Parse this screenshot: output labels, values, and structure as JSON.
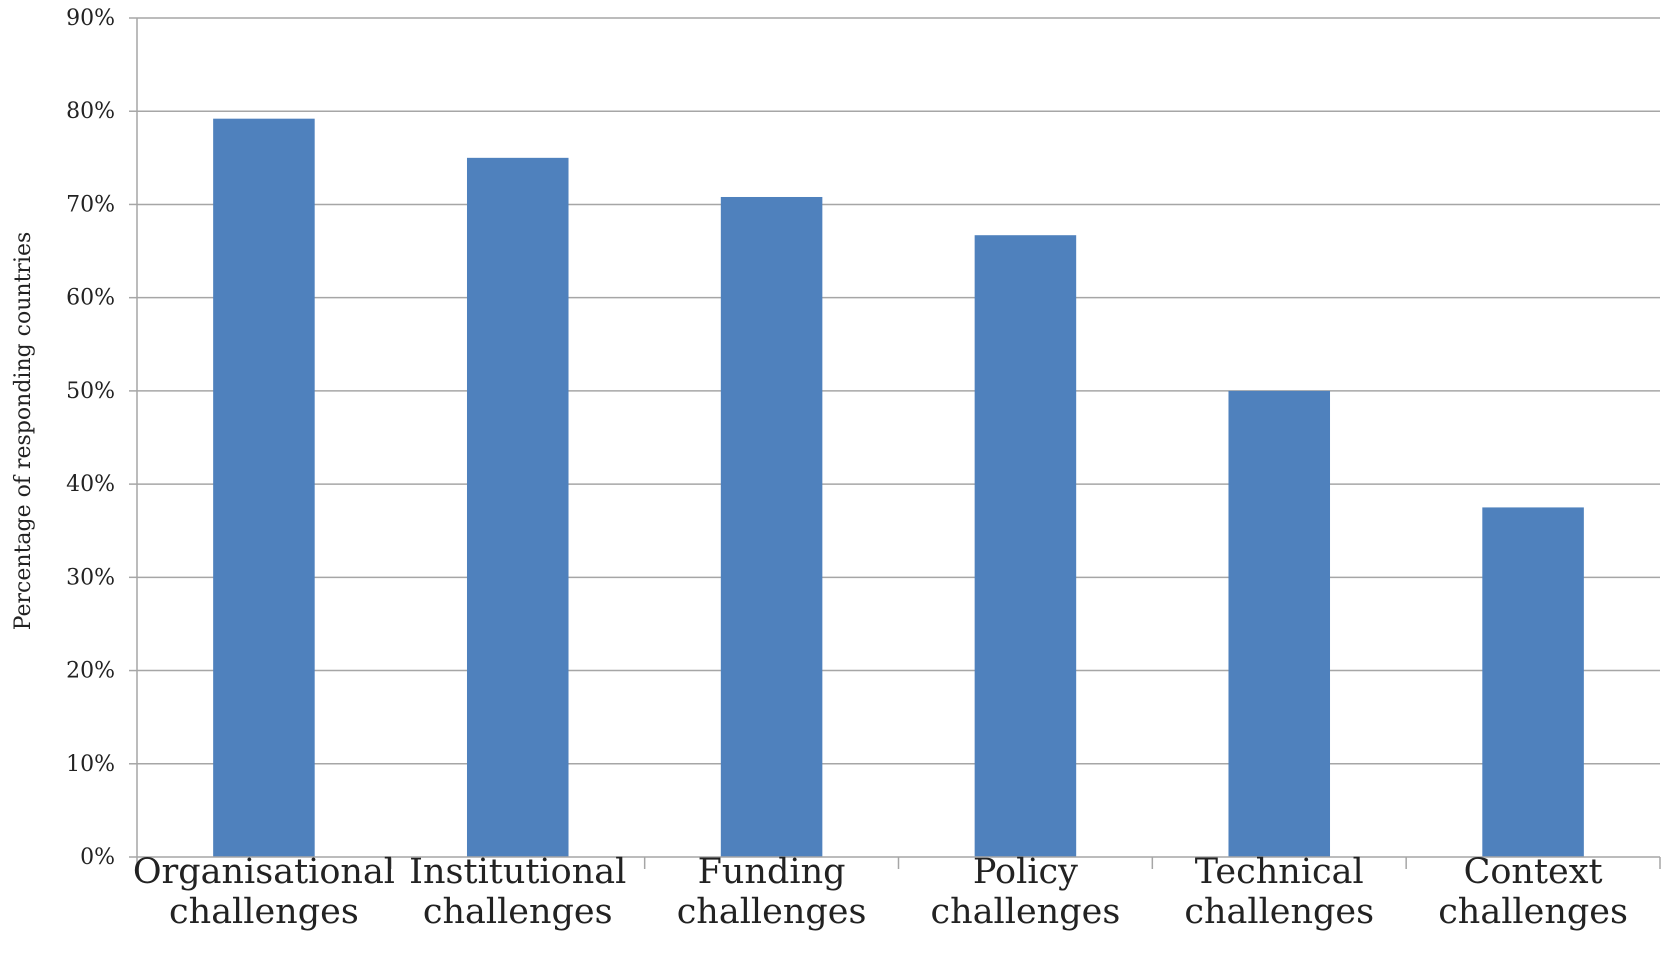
{
  "chart_data": {
    "type": "bar",
    "title": "",
    "xlabel": "",
    "ylabel": "Percentage of responding countries",
    "categories": [
      [
        "Organisational",
        "challenges"
      ],
      [
        "Institutional",
        "challenges"
      ],
      [
        "Funding",
        "challenges"
      ],
      [
        "Policy",
        "challenges"
      ],
      [
        "Technical",
        "challenges"
      ],
      [
        "Context",
        "challenges"
      ]
    ],
    "values": [
      79.2,
      75.0,
      70.8,
      66.7,
      50.0,
      37.5
    ],
    "ylim": [
      0,
      90
    ],
    "yticks": [
      0,
      10,
      20,
      30,
      40,
      50,
      60,
      70,
      80,
      90
    ],
    "ytick_labels": [
      "0%",
      "10%",
      "20%",
      "30%",
      "40%",
      "50%",
      "60%",
      "70%",
      "80%",
      "90%"
    ],
    "grid": true,
    "legend": "none",
    "colors": {
      "bar": "#4F81BD",
      "grid": "#A6A6A6",
      "axis": "#A6A6A6",
      "text": "#222222"
    }
  }
}
